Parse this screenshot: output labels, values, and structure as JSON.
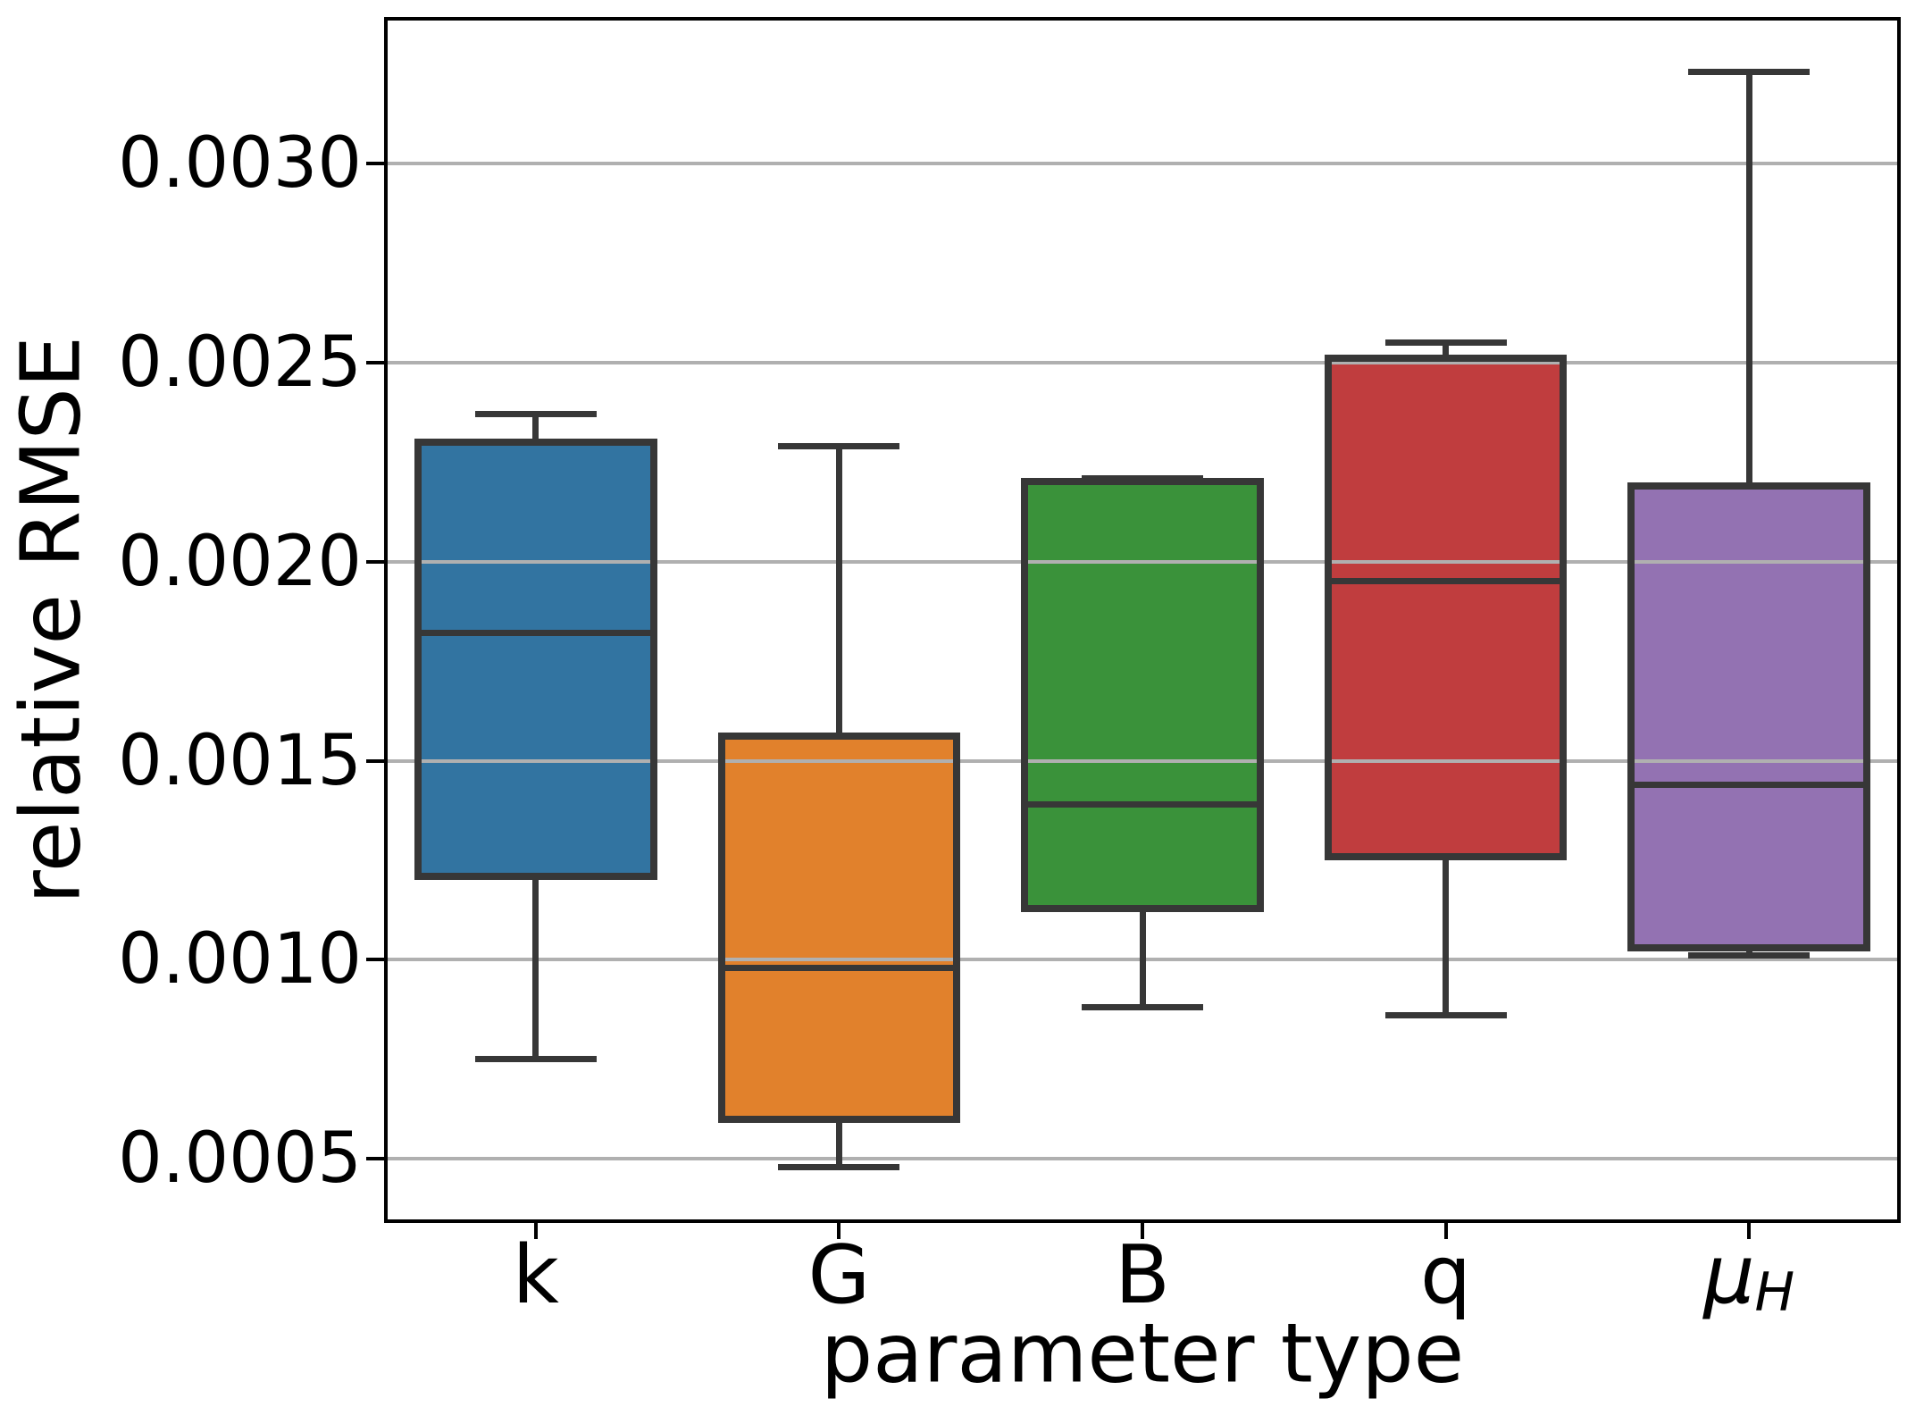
{
  "chart_data": {
    "type": "boxplot",
    "title": "",
    "xlabel": "parameter type",
    "ylabel": "relative RMSE",
    "grid": true,
    "legend": false,
    "ylim": [
      0.000339,
      0.003368
    ],
    "yticks": [
      {
        "value": 0.0005,
        "label": "0.0005"
      },
      {
        "value": 0.001,
        "label": "0.0010"
      },
      {
        "value": 0.0015,
        "label": "0.0015"
      },
      {
        "value": 0.002,
        "label": "0.0020"
      },
      {
        "value": 0.0025,
        "label": "0.0025"
      },
      {
        "value": 0.003,
        "label": "0.0030"
      }
    ],
    "categories": [
      {
        "label": "k"
      },
      {
        "label": "G"
      },
      {
        "label": "B"
      },
      {
        "label": "q"
      },
      {
        "label": "μ",
        "sub": "H",
        "italic": true
      }
    ],
    "series": [
      {
        "category": "k",
        "color": "#3274a1",
        "whisker_low": 0.00075,
        "q1": 0.0012,
        "median": 0.00182,
        "q3": 0.00231,
        "whisker_high": 0.00237
      },
      {
        "category": "G",
        "color": "#e1812c",
        "whisker_low": 0.00048,
        "q1": 0.00059,
        "median": 0.00098,
        "q3": 0.00157,
        "whisker_high": 0.00229
      },
      {
        "category": "B",
        "color": "#3a923a",
        "whisker_low": 0.00088,
        "q1": 0.00112,
        "median": 0.00139,
        "q3": 0.00221,
        "whisker_high": 0.00221
      },
      {
        "category": "q",
        "color": "#c03d3e",
        "whisker_low": 0.00086,
        "q1": 0.00125,
        "median": 0.00195,
        "q3": 0.00252,
        "whisker_high": 0.00255
      },
      {
        "category": "μH",
        "color": "#9372b2",
        "whisker_low": 0.00101,
        "q1": 0.00102,
        "median": 0.00144,
        "q3": 0.0022,
        "whisker_high": 0.00323
      }
    ],
    "styles": {
      "line_color": "#373737",
      "grid_color": "#b0b0b0",
      "spine_color": "#000000",
      "background": "#ffffff",
      "box_width_frac": 0.8,
      "cap_width_frac": 0.4
    }
  }
}
